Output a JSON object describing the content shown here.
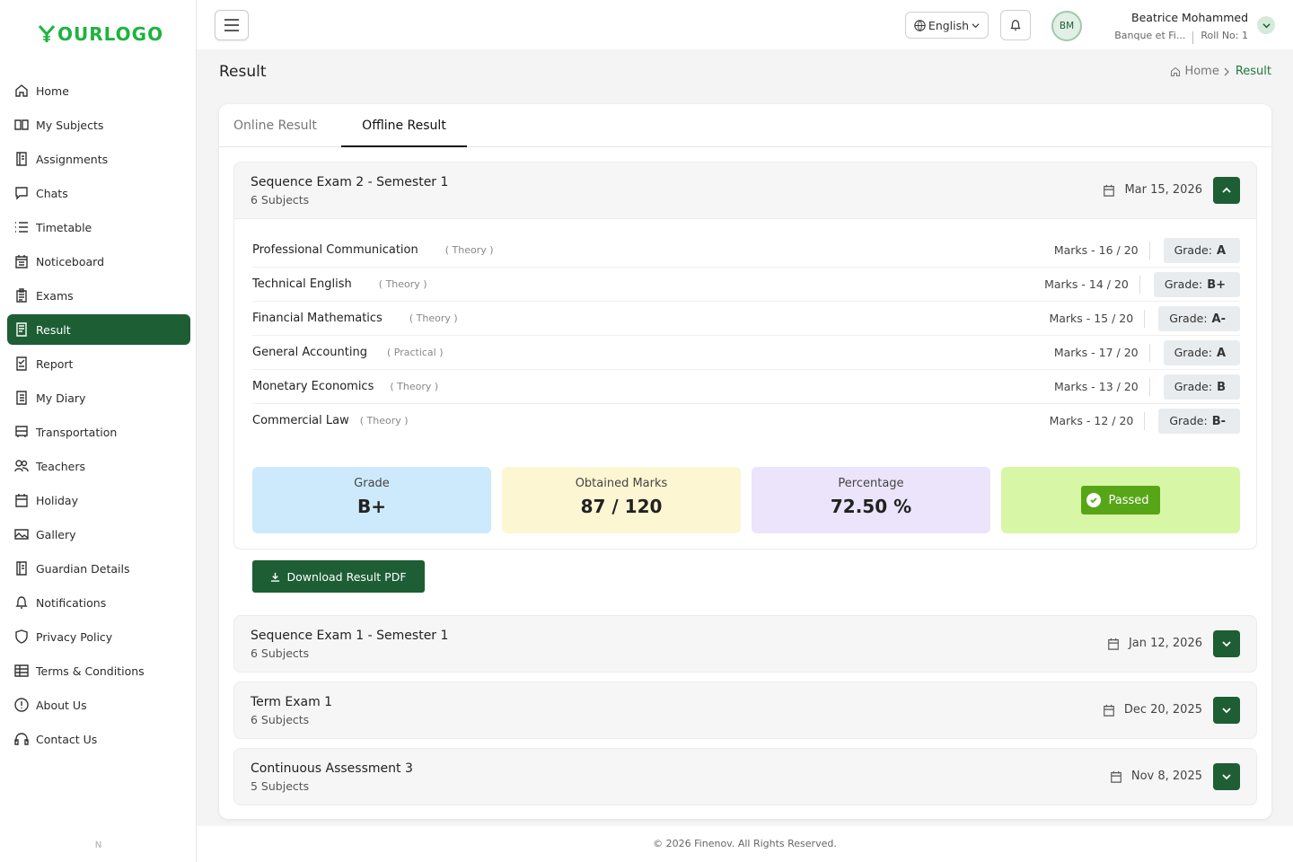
{
  "brand": {
    "logo_text": "OURLOGO",
    "accent": "#1e5e35",
    "logo_color": "#1eb33f"
  },
  "sidebar": {
    "items": [
      {
        "label": "Home",
        "icon": "home-icon"
      },
      {
        "label": "My Subjects",
        "icon": "book-open-icon"
      },
      {
        "label": "Assignments",
        "icon": "notebook-icon"
      },
      {
        "label": "Chats",
        "icon": "chat-icon"
      },
      {
        "label": "Timetable",
        "icon": "list-icon"
      },
      {
        "label": "Noticeboard",
        "icon": "calendar-board-icon"
      },
      {
        "label": "Exams",
        "icon": "clipboard-icon"
      },
      {
        "label": "Result",
        "icon": "document-icon",
        "active": true
      },
      {
        "label": "Report",
        "icon": "report-check-icon"
      },
      {
        "label": "My Diary",
        "icon": "diary-icon"
      },
      {
        "label": "Transportation",
        "icon": "bus-icon"
      },
      {
        "label": "Teachers",
        "icon": "people-icon"
      },
      {
        "label": "Holiday",
        "icon": "calendar-icon"
      },
      {
        "label": "Gallery",
        "icon": "image-icon"
      },
      {
        "label": "Guardian Details",
        "icon": "guardian-book-icon"
      },
      {
        "label": "Notifications",
        "icon": "bell-icon"
      },
      {
        "label": "Privacy Policy",
        "icon": "shield-icon"
      },
      {
        "label": "Terms & Conditions",
        "icon": "table-icon"
      },
      {
        "label": "About Us",
        "icon": "info-icon"
      },
      {
        "label": "Contact Us",
        "icon": "headset-icon"
      }
    ],
    "footer_text": "N"
  },
  "topbar": {
    "language": "English",
    "avatar_initials": "BM",
    "user_name": "Beatrice Mohammed",
    "user_program": "Banque et Fi...",
    "roll_no": "Roll No: 1"
  },
  "page": {
    "title": "Result",
    "breadcrumb_home": "Home",
    "breadcrumb_current": "Result"
  },
  "tabs": {
    "online": "Online Result",
    "offline": "Offline Result",
    "active": "offline"
  },
  "exams": [
    {
      "title": "Sequence Exam 2 - Semester 1",
      "subjects_count": "6 Subjects",
      "date": "Mar 15, 2026",
      "expanded": true,
      "subjects": [
        {
          "name": "Professional Communication",
          "type": "( Theory )",
          "marks": "Marks - 16 / 20",
          "grade_label": "Grade:",
          "grade": "A"
        },
        {
          "name": "Technical English",
          "type": "( Theory )",
          "marks": "Marks - 14 / 20",
          "grade_label": "Grade:",
          "grade": "B+"
        },
        {
          "name": "Financial Mathematics",
          "type": "( Theory )",
          "marks": "Marks - 15 / 20",
          "grade_label": "Grade:",
          "grade": "A-"
        },
        {
          "name": "General Accounting",
          "type": "( Practical )",
          "marks": "Marks - 17 / 20",
          "grade_label": "Grade:",
          "grade": "A"
        },
        {
          "name": "Monetary Economics",
          "type": "( Theory )",
          "marks": "Marks - 13 / 20",
          "grade_label": "Grade:",
          "grade": "B"
        },
        {
          "name": "Commercial Law",
          "type": "( Theory )",
          "marks": "Marks - 12 / 20",
          "grade_label": "Grade:",
          "grade": "B-"
        }
      ],
      "summary": {
        "grade_label": "Grade",
        "grade": "B+",
        "marks_label": "Obtained Marks",
        "marks": "87 / 120",
        "percentage_label": "Percentage",
        "percentage": "72.50 %",
        "status": "Passed"
      },
      "download_label": "Download Result PDF"
    },
    {
      "title": "Sequence Exam 1 - Semester 1",
      "subjects_count": "6 Subjects",
      "date": "Jan 12, 2026",
      "expanded": false
    },
    {
      "title": "Term Exam 1",
      "subjects_count": "6 Subjects",
      "date": "Dec 20, 2025",
      "expanded": false
    },
    {
      "title": "Continuous Assessment 3",
      "subjects_count": "5 Subjects",
      "date": "Nov 8, 2025",
      "expanded": false
    }
  ],
  "footer": {
    "copyright": "© 2026 Finenov. All Rights Reserved."
  }
}
